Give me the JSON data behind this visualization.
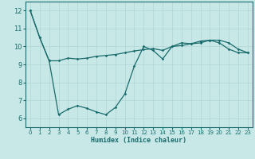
{
  "title": "",
  "xlabel": "Humidex (Indice chaleur)",
  "ylabel": "",
  "background_color": "#c8e8e8",
  "grid_color": "#b0d4d4",
  "line_color": "#1a6b6b",
  "xlim": [
    -0.5,
    23.5
  ],
  "ylim": [
    5.5,
    12.5
  ],
  "xticks": [
    0,
    1,
    2,
    3,
    4,
    5,
    6,
    7,
    8,
    9,
    10,
    11,
    12,
    13,
    14,
    15,
    16,
    17,
    18,
    19,
    20,
    21,
    22,
    23
  ],
  "yticks": [
    6,
    7,
    8,
    9,
    10,
    11,
    12
  ],
  "series1_x": [
    0,
    1,
    2,
    3,
    4,
    5,
    6,
    7,
    8,
    9,
    10,
    11,
    12,
    13,
    14,
    15,
    16,
    17,
    18,
    19,
    20,
    21,
    22,
    23
  ],
  "series1_y": [
    12.0,
    10.5,
    9.2,
    9.2,
    9.35,
    9.3,
    9.35,
    9.45,
    9.5,
    9.55,
    9.65,
    9.75,
    9.82,
    9.88,
    9.78,
    10.0,
    10.05,
    10.15,
    10.2,
    10.35,
    10.35,
    10.2,
    9.85,
    9.65
  ],
  "series2_x": [
    0,
    1,
    2,
    3,
    4,
    5,
    6,
    7,
    8,
    9,
    10,
    11,
    12,
    13,
    14,
    15,
    16,
    17,
    18,
    19,
    20,
    21,
    22,
    23
  ],
  "series2_y": [
    12.0,
    10.5,
    9.2,
    6.2,
    6.5,
    6.7,
    6.55,
    6.35,
    6.2,
    6.6,
    7.35,
    8.9,
    10.0,
    9.78,
    9.3,
    10.0,
    10.2,
    10.15,
    10.3,
    10.35,
    10.2,
    9.85,
    9.65,
    9.65
  ]
}
